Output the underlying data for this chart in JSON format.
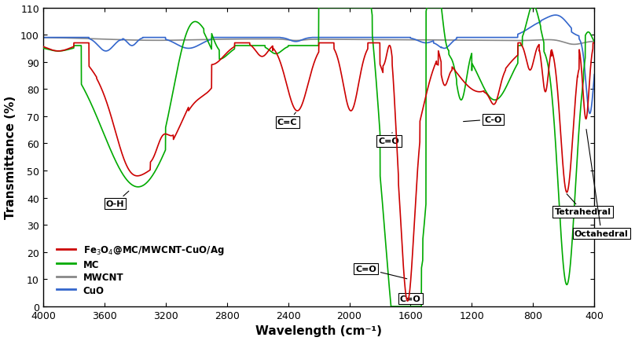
{
  "xlabel": "Wavelength (cm⁻¹)",
  "ylabel": "Transmittance (%)",
  "xlim": [
    4000,
    400
  ],
  "ylim": [
    0,
    110
  ],
  "yticks": [
    0,
    10,
    20,
    30,
    40,
    50,
    60,
    70,
    80,
    90,
    100,
    110
  ],
  "xticks": [
    4000,
    3600,
    3200,
    2800,
    2400,
    2000,
    1600,
    1200,
    800,
    400
  ],
  "colors": {
    "red": "#cc0000",
    "green": "#00aa00",
    "gray": "#888888",
    "blue": "#3366cc"
  }
}
